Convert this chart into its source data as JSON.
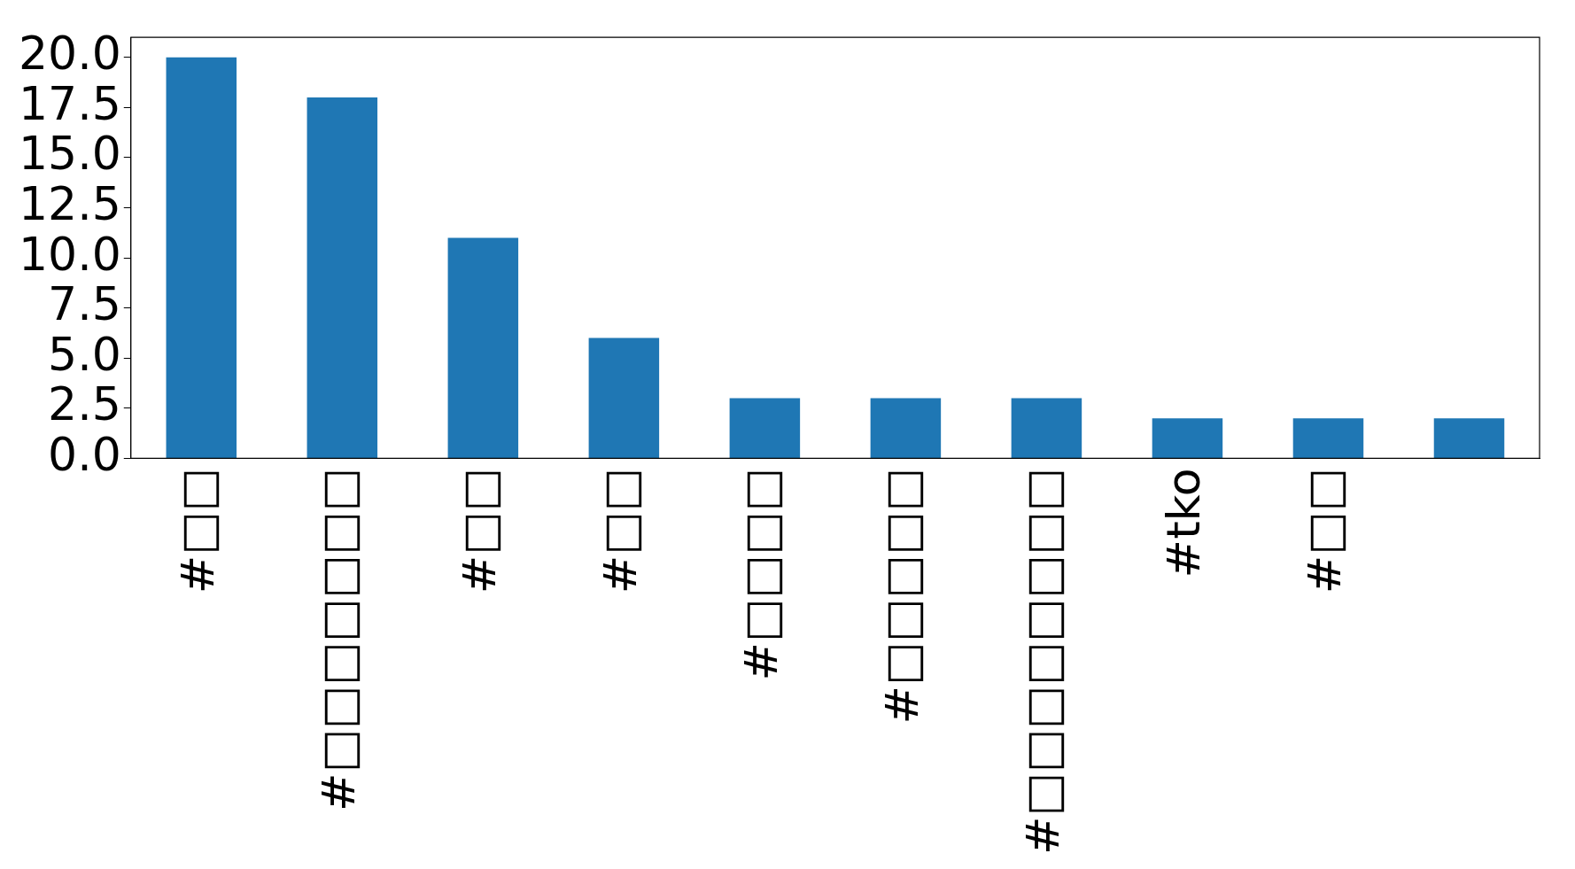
{
  "chart_data": {
    "type": "bar",
    "categories": [
      "#□□",
      "#□□□□□□□",
      "#□□",
      "#□□",
      "#□□□□",
      "#□□□□□",
      "#□□□□□□□□",
      "#tko",
      "#□□",
      null
    ],
    "values": [
      20,
      18,
      11,
      6,
      3,
      3,
      3,
      2,
      2,
      2
    ],
    "color": "#1f77b4",
    "ylim": [
      0,
      21
    ],
    "yticks": [
      {
        "value": 0,
        "label": "0.0"
      },
      {
        "value": 2.5,
        "label": "2.5"
      },
      {
        "value": 5,
        "label": "5.0"
      },
      {
        "value": 7.5,
        "label": "7.5"
      },
      {
        "value": 10,
        "label": "10.0"
      },
      {
        "value": 12.5,
        "label": "12.5"
      },
      {
        "value": 15,
        "label": "15.0"
      },
      {
        "value": 17.5,
        "label": "17.5"
      },
      {
        "value": 20,
        "label": "20.0"
      }
    ],
    "grid": false,
    "legend": false
  }
}
